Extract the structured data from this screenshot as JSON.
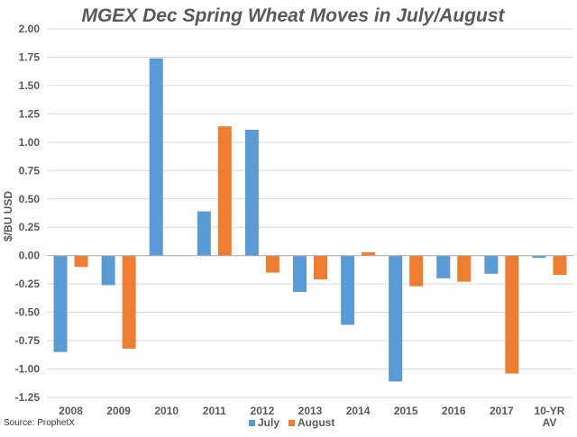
{
  "chart_data": {
    "type": "bar",
    "title": "MGEX Dec Spring Wheat Moves in July/August",
    "xlabel": "",
    "ylabel": "$/BU USD",
    "categories": [
      "2008",
      "2009",
      "2010",
      "2011",
      "2012",
      "2013",
      "2014",
      "2015",
      "2016",
      "2017",
      "10-YR AV"
    ],
    "category_lines": [
      [
        "2008"
      ],
      [
        "2009"
      ],
      [
        "2010"
      ],
      [
        "2011"
      ],
      [
        "2012"
      ],
      [
        "2013"
      ],
      [
        "2014"
      ],
      [
        "2015"
      ],
      [
        "2016"
      ],
      [
        "2017"
      ],
      [
        "10-YR",
        "AV"
      ]
    ],
    "series": [
      {
        "name": "July",
        "color": "#5b9bd5",
        "values": [
          -0.85,
          -0.26,
          1.74,
          0.39,
          1.11,
          -0.32,
          -0.61,
          -1.11,
          -0.2,
          -0.16,
          -0.02
        ]
      },
      {
        "name": "August",
        "color": "#ed7d31",
        "values": [
          -0.1,
          -0.82,
          0.0,
          1.14,
          -0.15,
          -0.21,
          0.03,
          -0.27,
          -0.23,
          -1.04,
          -0.17
        ]
      }
    ],
    "ylim": [
      -1.25,
      2.0
    ],
    "yticks": [
      2.0,
      1.75,
      1.5,
      1.25,
      1.0,
      0.75,
      0.5,
      0.25,
      0.0,
      -0.25,
      -0.5,
      -0.75,
      -1.0,
      -1.25
    ],
    "ytick_labels": [
      "2.00",
      "1.75",
      "1.50",
      "1.25",
      "1.00",
      "0.75",
      "0.50",
      "0.25",
      "0.00",
      "-0.25",
      "-0.50",
      "-0.75",
      "-1.00",
      "-1.25"
    ],
    "grid": true,
    "legend_position": "bottom",
    "source": "Source: ProphetX"
  }
}
